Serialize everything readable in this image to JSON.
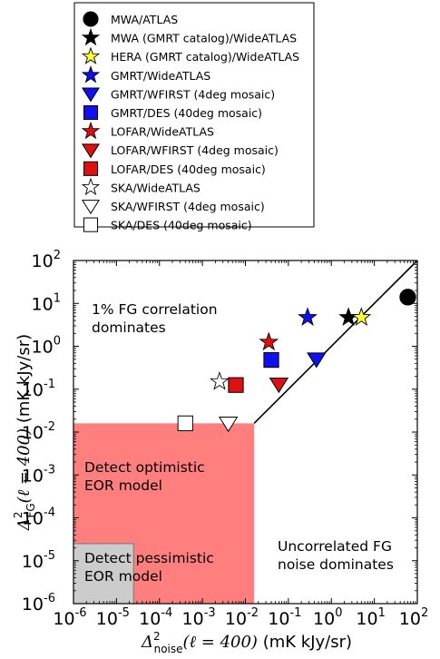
{
  "chart_data": {
    "type": "scatter",
    "x_scale": "log",
    "y_scale": "log",
    "xlim": [
      1e-06,
      100
    ],
    "ylim": [
      1e-06,
      100
    ],
    "x_ticks": [
      1e-06,
      1e-05,
      0.0001,
      0.001,
      0.01,
      0.1,
      1,
      10,
      100
    ],
    "y_ticks": [
      1e-06,
      1e-05,
      0.0001,
      0.001,
      0.01,
      0.1,
      1,
      10,
      100
    ],
    "xlabel": {
      "math": "Δ",
      "sup": "2",
      "sub": "noise",
      "paren": "(ℓ = 400)",
      "units": "(mK kJy/sr)"
    },
    "ylabel": {
      "math": "Δ",
      "sup": "2",
      "sub": "FG",
      "paren": "(ℓ = 400)",
      "units": "(mK kJy/sr)"
    },
    "grid": false,
    "legend_position": "above plot",
    "series": [
      {
        "name": "MWA/ATLAS",
        "marker": "circle",
        "filled": true,
        "color": "#000000",
        "x": 60,
        "y": 14
      },
      {
        "name": "MWA (GMRT catalog)/WideATLAS",
        "marker": "star",
        "filled": true,
        "color": "#000000",
        "x": 2.5,
        "y": 4.7
      },
      {
        "name": "HERA (GMRT catalog)/WideATLAS",
        "marker": "star",
        "filled": true,
        "color": "#ffff33",
        "x": 5,
        "y": 4.7
      },
      {
        "name": "GMRT/WideATLAS",
        "marker": "star",
        "filled": true,
        "color": "#1010ee",
        "x": 0.28,
        "y": 4.7
      },
      {
        "name": "GMRT/WFIRST (4deg mosaic)",
        "marker": "triangle-down",
        "filled": true,
        "color": "#1010ee",
        "x": 0.45,
        "y": 0.5
      },
      {
        "name": "GMRT/DES (40deg mosaic)",
        "marker": "square",
        "filled": true,
        "color": "#1010ee",
        "x": 0.04,
        "y": 0.48
      },
      {
        "name": "LOFAR/WideATLAS",
        "marker": "star",
        "filled": true,
        "color": "#dd1111",
        "x": 0.035,
        "y": 1.25
      },
      {
        "name": "LOFAR/WFIRST (4deg mosaic)",
        "marker": "triangle-down",
        "filled": true,
        "color": "#dd1111",
        "x": 0.06,
        "y": 0.13
      },
      {
        "name": "LOFAR/DES (40deg mosaic)",
        "marker": "square",
        "filled": true,
        "color": "#dd1111",
        "x": 0.006,
        "y": 0.125
      },
      {
        "name": "SKA/WideATLAS",
        "marker": "star",
        "filled": false,
        "color": "#000000",
        "x": 0.0025,
        "y": 0.15
      },
      {
        "name": "SKA/WFIRST (4deg mosaic)",
        "marker": "triangle-down",
        "filled": false,
        "color": "#000000",
        "x": 0.004,
        "y": 0.016
      },
      {
        "name": "SKA/DES (40deg mosaic)",
        "marker": "square",
        "filled": false,
        "color": "#000000",
        "x": 0.0004,
        "y": 0.016
      }
    ],
    "line": {
      "points": [
        [
          0.016,
          0.016
        ],
        [
          100,
          100
        ]
      ],
      "color": "#000000"
    },
    "regions": [
      {
        "name": "optimistic",
        "x": [
          1e-06,
          0.016
        ],
        "y": [
          1e-06,
          0.016
        ],
        "color": "#ff7f7f"
      },
      {
        "name": "pessimistic",
        "x": [
          1e-06,
          2.5e-05
        ],
        "y": [
          1e-06,
          2.5e-05
        ],
        "color": "#cccccc"
      }
    ],
    "annotations": {
      "fg_correlation": [
        "1% FG correlation",
        "dominates"
      ],
      "optimistic": [
        "Detect optimistic",
        "EOR model"
      ],
      "pessimistic": [
        "Detect pessimistic",
        "EOR model"
      ],
      "uncorrelated": [
        "Uncorrelated FG",
        "noise dominates"
      ]
    }
  }
}
